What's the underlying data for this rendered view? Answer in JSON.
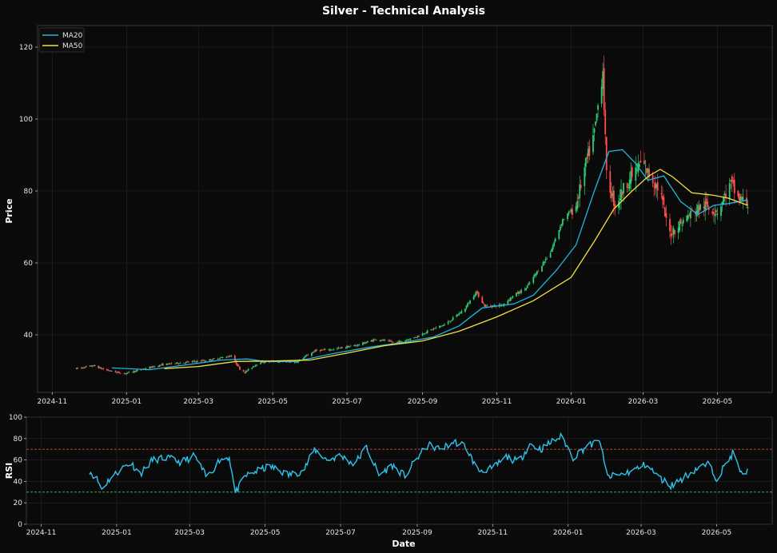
{
  "chart_data": [
    {
      "type": "candlestick",
      "title": "Silver - Technical Analysis",
      "ylabel": "Price",
      "xlabel": "",
      "ylim": [
        24,
        126
      ],
      "yticks": [
        40,
        60,
        80,
        100,
        120
      ],
      "x_tick_labels": [
        "2024-11",
        "2025-01",
        "2025-03",
        "2025-05",
        "2025-07",
        "2025-09",
        "2025-11",
        "2026-01",
        "2026-03",
        "2026-05"
      ],
      "x_tick_dates": [
        "2024-11-01",
        "2025-01-01",
        "2025-03-01",
        "2025-05-01",
        "2025-07-01",
        "2025-09-01",
        "2025-11-01",
        "2026-01-01",
        "2026-03-01",
        "2026-05-01"
      ],
      "x_range": [
        "2024-10-20",
        "2026-06-15"
      ],
      "grid": true,
      "legend_position": "top-left",
      "up_color": "#2ecc71",
      "down_color": "#ff4d4d",
      "price_path_start": "2024-11-21",
      "price_path_end": "2026-05-26",
      "price_path": [
        [
          "2024-11-21",
          30.6
        ],
        [
          "2024-12-05",
          31.4
        ],
        [
          "2024-12-15",
          30.2
        ],
        [
          "2024-12-30",
          29.2
        ],
        [
          "2025-01-15",
          30.5
        ],
        [
          "2025-02-01",
          31.8
        ],
        [
          "2025-02-20",
          32.4
        ],
        [
          "2025-03-10",
          33.0
        ],
        [
          "2025-03-28",
          34.2
        ],
        [
          "2025-04-04",
          30.5
        ],
        [
          "2025-04-08",
          29.6
        ],
        [
          "2025-04-20",
          32.4
        ],
        [
          "2025-05-01",
          32.6
        ],
        [
          "2025-05-20",
          32.4
        ],
        [
          "2025-06-05",
          35.6
        ],
        [
          "2025-06-20",
          36.0
        ],
        [
          "2025-07-10",
          37.2
        ],
        [
          "2025-07-25",
          38.8
        ],
        [
          "2025-08-10",
          37.8
        ],
        [
          "2025-08-25",
          39.2
        ],
        [
          "2025-09-05",
          41.0
        ],
        [
          "2025-09-20",
          43.0
        ],
        [
          "2025-10-05",
          47.0
        ],
        [
          "2025-10-15",
          52.0
        ],
        [
          "2025-10-22",
          48.0
        ],
        [
          "2025-11-05",
          48.2
        ],
        [
          "2025-11-15",
          51.0
        ],
        [
          "2025-11-25",
          53.0
        ],
        [
          "2025-12-05",
          58.0
        ],
        [
          "2025-12-15",
          63.0
        ],
        [
          "2025-12-25",
          72.0
        ],
        [
          "2026-01-05",
          76.0
        ],
        [
          "2026-01-12",
          86.0
        ],
        [
          "2026-01-20",
          96.0
        ],
        [
          "2026-01-27",
          114.0
        ],
        [
          "2026-01-30",
          84.0
        ],
        [
          "2026-02-06",
          76.0
        ],
        [
          "2026-02-15",
          82.0
        ],
        [
          "2026-02-28",
          88.0
        ],
        [
          "2026-03-05",
          85.0
        ],
        [
          "2026-03-15",
          80.0
        ],
        [
          "2026-03-22",
          68.0
        ],
        [
          "2026-04-01",
          71.0
        ],
        [
          "2026-04-10",
          74.0
        ],
        [
          "2026-04-20",
          76.0
        ],
        [
          "2026-05-01",
          74.5
        ],
        [
          "2026-05-12",
          82.0
        ],
        [
          "2026-05-18",
          78.0
        ],
        [
          "2026-05-26",
          76.5
        ]
      ],
      "series": [
        {
          "name": "MA20",
          "color": "#1fb6e0",
          "points": [
            [
              "2024-12-20",
              30.8
            ],
            [
              "2025-01-20",
              30.3
            ],
            [
              "2025-02-20",
              31.7
            ],
            [
              "2025-03-20",
              33.0
            ],
            [
              "2025-04-10",
              33.3
            ],
            [
              "2025-04-25",
              32.6
            ],
            [
              "2025-05-20",
              32.6
            ],
            [
              "2025-06-20",
              34.8
            ],
            [
              "2025-07-20",
              36.6
            ],
            [
              "2025-08-20",
              38.1
            ],
            [
              "2025-09-10",
              39.4
            ],
            [
              "2025-10-01",
              42.5
            ],
            [
              "2025-10-20",
              47.5
            ],
            [
              "2025-11-15",
              48.6
            ],
            [
              "2025-12-01",
              51.0
            ],
            [
              "2025-12-20",
              58.0
            ],
            [
              "2026-01-05",
              65.0
            ],
            [
              "2026-01-20",
              80.0
            ],
            [
              "2026-02-01",
              91.0
            ],
            [
              "2026-02-12",
              91.5
            ],
            [
              "2026-02-22",
              88.0
            ],
            [
              "2026-03-05",
              83.0
            ],
            [
              "2026-03-18",
              84.2
            ],
            [
              "2026-04-01",
              77.0
            ],
            [
              "2026-04-15",
              73.5
            ],
            [
              "2026-04-28",
              76.0
            ],
            [
              "2026-05-10",
              76.5
            ],
            [
              "2026-05-26",
              77.5
            ]
          ]
        },
        {
          "name": "MA50",
          "color": "#f0e040",
          "points": [
            [
              "2025-02-01",
              30.6
            ],
            [
              "2025-03-01",
              31.2
            ],
            [
              "2025-04-01",
              32.6
            ],
            [
              "2025-05-01",
              32.7
            ],
            [
              "2025-06-01",
              33.0
            ],
            [
              "2025-07-01",
              34.9
            ],
            [
              "2025-08-01",
              37.0
            ],
            [
              "2025-09-01",
              38.3
            ],
            [
              "2025-10-01",
              41.0
            ],
            [
              "2025-11-01",
              45.0
            ],
            [
              "2025-12-01",
              49.5
            ],
            [
              "2026-01-01",
              56.0
            ],
            [
              "2026-01-20",
              66.0
            ],
            [
              "2026-02-05",
              75.0
            ],
            [
              "2026-02-20",
              80.0
            ],
            [
              "2026-03-05",
              84.0
            ],
            [
              "2026-03-15",
              86.0
            ],
            [
              "2026-03-25",
              84.0
            ],
            [
              "2026-04-10",
              79.5
            ],
            [
              "2026-04-28",
              78.8
            ],
            [
              "2026-05-10",
              78.0
            ],
            [
              "2026-05-26",
              76.0
            ]
          ]
        }
      ]
    },
    {
      "type": "line",
      "title": "",
      "ylabel": "RSI",
      "xlabel": "Date",
      "ylim": [
        0,
        100
      ],
      "yticks": [
        0,
        20,
        40,
        60,
        80,
        100
      ],
      "x_tick_labels": [
        "2024-11",
        "2025-01",
        "2025-03",
        "2025-05",
        "2025-07",
        "2025-09",
        "2025-11",
        "2026-01",
        "2026-03",
        "2026-05"
      ],
      "x_tick_dates": [
        "2024-11-01",
        "2025-01-01",
        "2025-03-01",
        "2025-05-01",
        "2025-07-01",
        "2025-09-01",
        "2025-11-01",
        "2026-01-01",
        "2026-03-01",
        "2026-05-01"
      ],
      "x_range": [
        "2024-10-20",
        "2026-06-15"
      ],
      "overbought": 70,
      "oversold": 30,
      "overbought_color": "#e0483a",
      "oversold_color": "#2ecc71",
      "grid": true,
      "series": [
        {
          "name": "",
          "color": "#2ec4ee",
          "points": [
            [
              "2024-12-10",
              50
            ],
            [
              "2024-12-16",
              42
            ],
            [
              "2024-12-20",
              33
            ],
            [
              "2024-12-26",
              42
            ],
            [
              "2025-01-05",
              52
            ],
            [
              "2025-01-12",
              58
            ],
            [
              "2025-01-20",
              47
            ],
            [
              "2025-01-30",
              60
            ],
            [
              "2025-02-10",
              62
            ],
            [
              "2025-02-22",
              58
            ],
            [
              "2025-03-05",
              64
            ],
            [
              "2025-03-15",
              43
            ],
            [
              "2025-03-25",
              60
            ],
            [
              "2025-04-02",
              63
            ],
            [
              "2025-04-07",
              29
            ],
            [
              "2025-04-15",
              45
            ],
            [
              "2025-04-25",
              50
            ],
            [
              "2025-05-05",
              54
            ],
            [
              "2025-05-20",
              46
            ],
            [
              "2025-06-01",
              50
            ],
            [
              "2025-06-10",
              70
            ],
            [
              "2025-06-20",
              60
            ],
            [
              "2025-07-01",
              64
            ],
            [
              "2025-07-12",
              56
            ],
            [
              "2025-07-22",
              72
            ],
            [
              "2025-08-01",
              46
            ],
            [
              "2025-08-12",
              55
            ],
            [
              "2025-08-22",
              45
            ],
            [
              "2025-09-01",
              62
            ],
            [
              "2025-09-10",
              74
            ],
            [
              "2025-09-20",
              70
            ],
            [
              "2025-10-01",
              77
            ],
            [
              "2025-10-10",
              73
            ],
            [
              "2025-10-20",
              50
            ],
            [
              "2025-11-01",
              52
            ],
            [
              "2025-11-12",
              63
            ],
            [
              "2025-11-22",
              58
            ],
            [
              "2025-12-01",
              75
            ],
            [
              "2025-12-10",
              70
            ],
            [
              "2025-12-20",
              78
            ],
            [
              "2025-12-27",
              82
            ],
            [
              "2026-01-05",
              62
            ],
            [
              "2026-01-15",
              72
            ],
            [
              "2026-01-27",
              78
            ],
            [
              "2026-02-01",
              44
            ],
            [
              "2026-02-12",
              46
            ],
            [
              "2026-02-22",
              50
            ],
            [
              "2026-03-05",
              56
            ],
            [
              "2026-03-15",
              44
            ],
            [
              "2026-03-25",
              36
            ],
            [
              "2026-04-05",
              44
            ],
            [
              "2026-04-15",
              52
            ],
            [
              "2026-04-25",
              56
            ],
            [
              "2026-05-01",
              43
            ],
            [
              "2026-05-08",
              55
            ],
            [
              "2026-05-15",
              68
            ],
            [
              "2026-05-20",
              47
            ],
            [
              "2026-05-26",
              49
            ]
          ]
        }
      ]
    }
  ]
}
